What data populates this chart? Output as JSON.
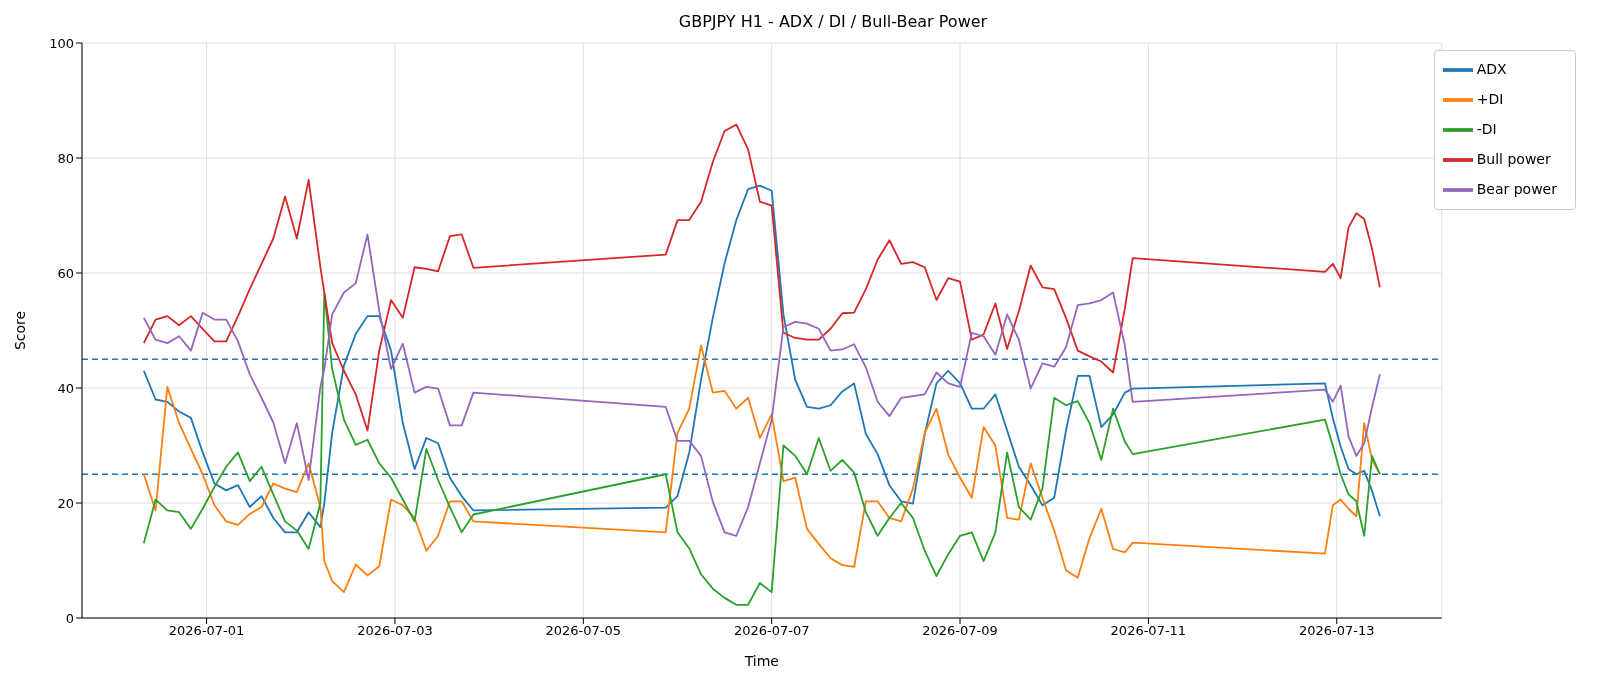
{
  "chart_data": {
    "type": "line",
    "title": "GBPJPY H1 - ADX / DI / Bull-Bear Power",
    "xlabel": "Time",
    "ylabel": "Score",
    "x": [
      "2026-06-30T08:00",
      "2026-06-30T11:00",
      "2026-06-30T14:00",
      "2026-06-30T17:00",
      "2026-06-30T20:00",
      "2026-06-30T23:00",
      "2026-07-01T02:00",
      "2026-07-01T05:00",
      "2026-07-01T08:00",
      "2026-07-01T11:00",
      "2026-07-01T14:00",
      "2026-07-01T17:00",
      "2026-07-01T20:00",
      "2026-07-01T23:00",
      "2026-07-02T02:00",
      "2026-07-02T05:00",
      "2026-07-02T06:00",
      "2026-07-02T08:00",
      "2026-07-02T11:00",
      "2026-07-02T14:00",
      "2026-07-02T17:00",
      "2026-07-02T20:00",
      "2026-07-02T23:00",
      "2026-07-03T02:00",
      "2026-07-03T05:00",
      "2026-07-03T08:00",
      "2026-07-03T11:00",
      "2026-07-03T14:00",
      "2026-07-03T17:00",
      "2026-07-03T20:00",
      "2026-07-05T21:00",
      "2026-07-06T00:00",
      "2026-07-06T03:00",
      "2026-07-06T06:00",
      "2026-07-06T09:00",
      "2026-07-06T12:00",
      "2026-07-06T15:00",
      "2026-07-06T18:00",
      "2026-07-06T21:00",
      "2026-07-07T00:00",
      "2026-07-07T03:00",
      "2026-07-07T06:00",
      "2026-07-07T09:00",
      "2026-07-07T12:00",
      "2026-07-07T15:00",
      "2026-07-07T18:00",
      "2026-07-07T21:00",
      "2026-07-08T00:00",
      "2026-07-08T03:00",
      "2026-07-08T06:00",
      "2026-07-08T09:00",
      "2026-07-08T12:00",
      "2026-07-08T15:00",
      "2026-07-08T18:00",
      "2026-07-08T21:00",
      "2026-07-09T00:00",
      "2026-07-09T03:00",
      "2026-07-09T06:00",
      "2026-07-09T09:00",
      "2026-07-09T12:00",
      "2026-07-09T15:00",
      "2026-07-09T18:00",
      "2026-07-09T21:00",
      "2026-07-10T00:00",
      "2026-07-10T03:00",
      "2026-07-10T06:00",
      "2026-07-10T09:00",
      "2026-07-10T12:00",
      "2026-07-10T15:00",
      "2026-07-10T18:00",
      "2026-07-10T20:00",
      "2026-07-12T21:00",
      "2026-07-12T23:00",
      "2026-07-13T01:00",
      "2026-07-13T03:00",
      "2026-07-13T05:00",
      "2026-07-13T07:00",
      "2026-07-13T09:00",
      "2026-07-13T11:00"
    ],
    "series": [
      {
        "name": "ADX",
        "color": "#1f77b4",
        "values": [
          43,
          38,
          37.6,
          35.9,
          34.8,
          28.8,
          23.4,
          22.2,
          23.1,
          19.3,
          21.2,
          17.4,
          14.9,
          14.9,
          18.4,
          15.8,
          20,
          32.2,
          43.9,
          49.4,
          52.5,
          52.5,
          46.5,
          33.9,
          25.9,
          31.3,
          30.4,
          24.4,
          21.2,
          18.7,
          19.2,
          21.2,
          28.8,
          41.4,
          52.2,
          61.7,
          69.2,
          74.6,
          75.2,
          74.3,
          52.8,
          41.4,
          36.7,
          36.4,
          37,
          39.4,
          40.8,
          32,
          28.5,
          23.1,
          20.3,
          19.9,
          32,
          40.8,
          43,
          40.8,
          36.4,
          36.4,
          38.9,
          32.6,
          26.3,
          23.1,
          19.6,
          20.9,
          32.6,
          42.1,
          42.1,
          33.2,
          35.4,
          39.2,
          39.9,
          40.8,
          34.8,
          29.8,
          25.9,
          25,
          25.6,
          22.1,
          17.7
        ]
      },
      {
        "name": "+DI",
        "color": "#ff7f0e",
        "values": [
          25,
          18.7,
          40.2,
          33.9,
          29.4,
          25,
          19.6,
          16.8,
          16.2,
          18.1,
          19.3,
          23.4,
          22.5,
          21.9,
          26.9,
          19.3,
          9.9,
          6.4,
          4.5,
          9.3,
          7.4,
          9,
          20.6,
          19.6,
          17.4,
          11.7,
          14.3,
          20.3,
          20.3,
          16.8,
          14.9,
          32.2,
          36.4,
          47.4,
          39.2,
          39.5,
          36.4,
          38.3,
          31.3,
          35.4,
          23.8,
          24.4,
          15.5,
          12.9,
          10.4,
          9.2,
          8.9,
          20.3,
          20.3,
          17.4,
          16.8,
          22.5,
          32.2,
          36.4,
          28.4,
          24.4,
          20.9,
          33.2,
          30,
          17.4,
          17.1,
          26.9,
          20.9,
          15.2,
          8.3,
          7,
          13.9,
          19,
          12,
          11.4,
          13.1,
          11.2,
          19.6,
          20.6,
          19,
          17.7,
          33.9,
          27.5,
          25
        ]
      },
      {
        "name": "-DI",
        "color": "#2ca02c",
        "values": [
          13,
          20.6,
          18.7,
          18.4,
          15.5,
          19,
          22.8,
          26.3,
          28.8,
          23.8,
          26.3,
          21.5,
          16.8,
          15.2,
          12,
          20,
          56.6,
          43.3,
          34.5,
          30.1,
          31,
          26.9,
          24.4,
          20.6,
          16.8,
          29.4,
          24,
          19.3,
          14.9,
          18,
          25,
          14.9,
          12.1,
          7.6,
          5.1,
          3.5,
          2.3,
          2.3,
          6.1,
          4.5,
          30,
          28.2,
          25,
          31.3,
          25.6,
          27.5,
          25.3,
          18.4,
          14.3,
          17.4,
          20,
          17.4,
          11.7,
          7.3,
          11.1,
          14.3,
          14.9,
          9.9,
          14.9,
          28.8,
          19.3,
          17.1,
          22.5,
          38.3,
          37,
          37.7,
          33.9,
          27.5,
          36.4,
          30.7,
          28.5,
          34.5,
          30,
          25,
          21.5,
          20.3,
          14.3,
          28.2,
          25
        ]
      },
      {
        "name": "Bull power",
        "color": "#d62728",
        "values": [
          47.8,
          51.9,
          52.5,
          50.9,
          52.5,
          50.3,
          48.1,
          48.1,
          52.5,
          57.2,
          61.6,
          66,
          73.3,
          66,
          76.2,
          61,
          56.6,
          47.8,
          43,
          38.9,
          32.6,
          46.5,
          55.3,
          52.2,
          61,
          60.7,
          60.3,
          66.4,
          66.7,
          60.9,
          63.2,
          69.2,
          69.2,
          72.4,
          79.3,
          84.7,
          85.8,
          81.5,
          72.4,
          71.7,
          49.6,
          48.7,
          48.4,
          48.4,
          50.3,
          53,
          53.1,
          57.2,
          62.3,
          65.7,
          61.6,
          61.9,
          61,
          55.3,
          59.1,
          58.5,
          48.4,
          49.3,
          54.7,
          46.8,
          53.4,
          61.3,
          57.5,
          57.2,
          52.2,
          46.5,
          45.5,
          44.6,
          42.7,
          53.8,
          62.6,
          60.2,
          61.6,
          59.1,
          67.9,
          70.4,
          69.4,
          64.2,
          57.5
        ]
      },
      {
        "name": "Bear power",
        "color": "#9467bd",
        "values": [
          52.2,
          48.4,
          47.8,
          49,
          46.5,
          53.1,
          51.9,
          51.9,
          48.1,
          42.4,
          38.3,
          34,
          26.9,
          33.9,
          24,
          40.2,
          43.3,
          52.8,
          56.6,
          58.2,
          66.7,
          53.4,
          43.3,
          47.7,
          39.2,
          40.2,
          39.9,
          33.5,
          33.5,
          39.2,
          36.7,
          30.8,
          30.8,
          28.2,
          20.2,
          14.9,
          14.3,
          19.3,
          26.9,
          34.5,
          50.6,
          51.5,
          51.2,
          50.3,
          46.5,
          46.7,
          47.6,
          43.6,
          37.6,
          35.1,
          38.3,
          38.6,
          38.9,
          42.7,
          40.8,
          40.2,
          49.6,
          49,
          45.8,
          52.8,
          48.4,
          39.9,
          44.3,
          43.7,
          47.1,
          54.4,
          54.7,
          55.3,
          56.6,
          47.4,
          37.6,
          39.7,
          37.6,
          40.4,
          31.6,
          28.2,
          30.4,
          36.7,
          42.4
        ]
      }
    ],
    "xlim": [
      "2026-06-29T16:15",
      "2026-07-14T02:45"
    ],
    "xticks": [
      "2026-07-01",
      "2026-07-03",
      "2026-07-05",
      "2026-07-07",
      "2026-07-09",
      "2026-07-11",
      "2026-07-13"
    ],
    "ylim": [
      0,
      100
    ],
    "yticks": [
      0,
      20,
      40,
      60,
      80,
      100
    ],
    "ref_lines": [
      {
        "axis": "y",
        "value": 45,
        "color": "#1f77b4",
        "line_style": "dashed"
      },
      {
        "axis": "y",
        "value": 25,
        "color": "#1f77b4",
        "line_style": "dashed"
      }
    ],
    "grid": true,
    "legend": "top right"
  }
}
